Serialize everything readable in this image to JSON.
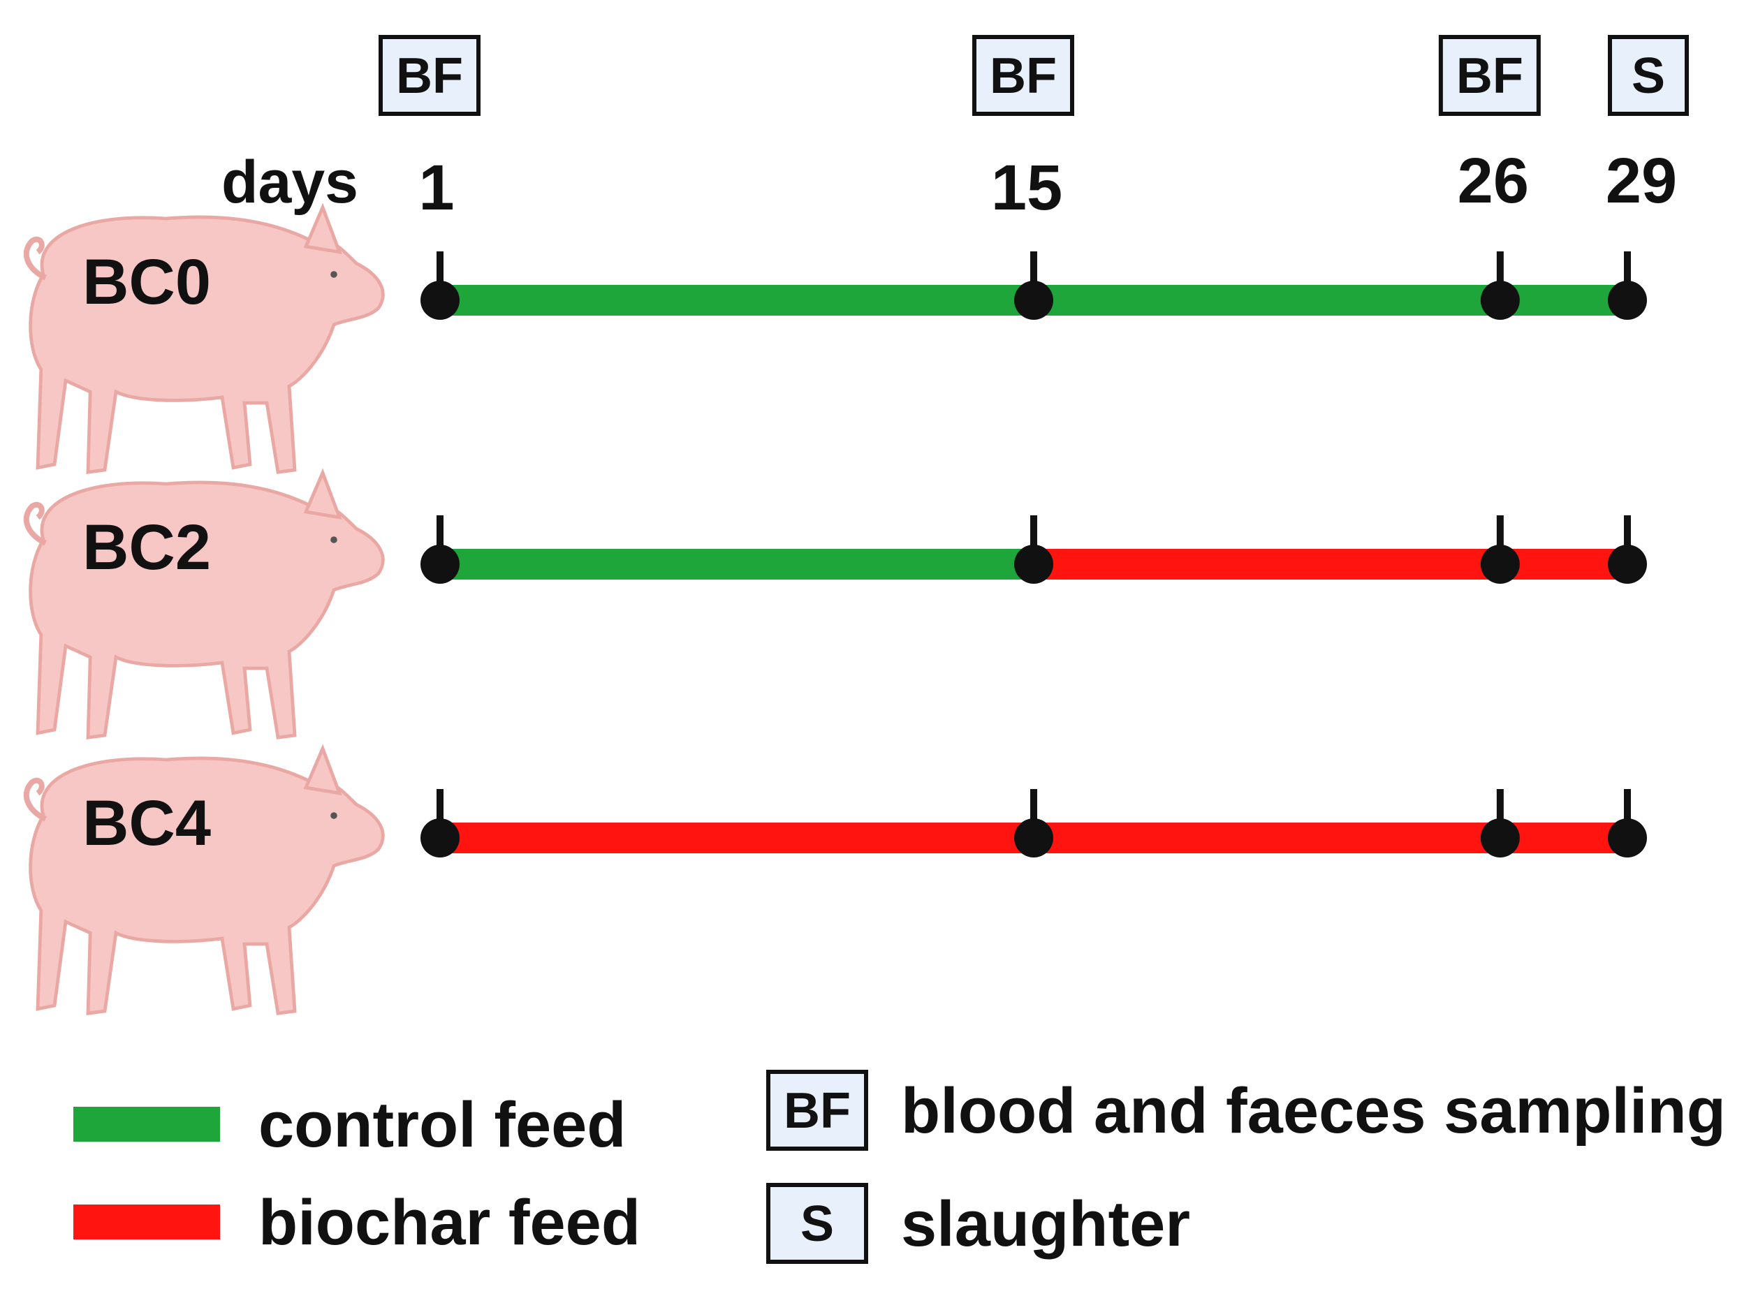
{
  "timeline": {
    "axis_label": "days",
    "days": [
      1,
      15,
      26,
      29
    ],
    "day_labels": [
      "1",
      "15",
      "26",
      "29"
    ],
    "events": [
      {
        "day": 1,
        "code": "BF"
      },
      {
        "day": 15,
        "code": "BF"
      },
      {
        "day": 26,
        "code": "BF"
      },
      {
        "day": 29,
        "code": "S"
      }
    ]
  },
  "groups": [
    {
      "label": "BC0",
      "segments": [
        {
          "from": 1,
          "to": 29,
          "feed": "control"
        }
      ]
    },
    {
      "label": "BC2",
      "segments": [
        {
          "from": 1,
          "to": 15,
          "feed": "control"
        },
        {
          "from": 15,
          "to": 29,
          "feed": "biochar"
        }
      ]
    },
    {
      "label": "BC4",
      "segments": [
        {
          "from": 1,
          "to": 29,
          "feed": "biochar"
        }
      ]
    }
  ],
  "feeds": {
    "control": {
      "label": "control feed",
      "color": "#1ea63a"
    },
    "biochar": {
      "label": "biochar feed",
      "color": "#ff1410"
    }
  },
  "legend": {
    "feeds": [
      {
        "key": "control",
        "label": "control feed"
      },
      {
        "key": "biochar",
        "label": "biochar feed"
      }
    ],
    "events": [
      {
        "code": "BF",
        "label": "blood and faeces sampling"
      },
      {
        "code": "S",
        "label": "slaughter"
      }
    ]
  },
  "colors": {
    "box_fill": "#e8f1fb",
    "box_stroke": "#111111",
    "pig_fill": "#f6c7c4",
    "pig_stroke": "#e9a8a3",
    "marker": "#111111",
    "text": "#111111"
  }
}
